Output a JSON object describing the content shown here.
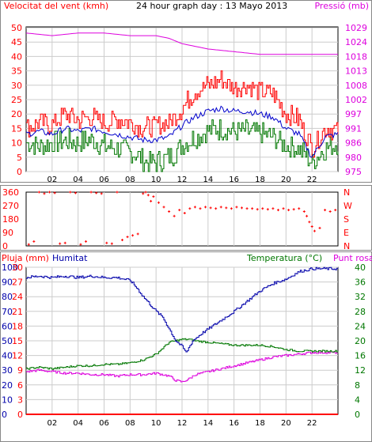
{
  "header": {
    "wind_title": "Velocitat del vent (kmh)",
    "graph_title": "24 hour graph day : 13 Mayo 2013",
    "pressure_title": "Pressió (mb)"
  },
  "colors": {
    "wind_gust": "#ff0000",
    "wind_avg": "#0000cc",
    "wind_low": "#007700",
    "pressure": "#dd00dd",
    "direction": "#ff0000",
    "rain": "#ff0000",
    "humidity": "#0000aa",
    "temperature": "#007700",
    "dewpoint": "#dd00dd",
    "grid": "#cccccc"
  },
  "x_ticks": [
    "02",
    "04",
    "06",
    "08",
    "10",
    "12",
    "14",
    "16",
    "18",
    "20",
    "22"
  ],
  "chart_data": [
    {
      "type": "line",
      "name": "wind-pressure",
      "x_range": [
        0,
        24
      ],
      "y_left": {
        "label": "Velocitat del vent (kmh)",
        "range": [
          0,
          50
        ],
        "ticks": [
          0,
          5,
          10,
          15,
          20,
          25,
          30,
          35,
          40,
          45,
          50
        ]
      },
      "y_right": {
        "label": "Pressió (mb)",
        "ticks": [
          975,
          980,
          986,
          991,
          997,
          1002,
          1008,
          1013,
          1018,
          1024,
          1029
        ]
      },
      "series": [
        {
          "name": "gust",
          "axis": "left",
          "x": [
            0,
            1,
            2,
            3,
            4,
            5,
            6,
            7,
            8,
            9,
            10,
            11,
            12,
            13,
            14,
            15,
            16,
            17,
            18,
            19,
            20,
            21,
            22,
            23,
            24
          ],
          "values": [
            15,
            17,
            16,
            20,
            18,
            19,
            17,
            18,
            17,
            15,
            16,
            17,
            22,
            28,
            30,
            32,
            29,
            30,
            28,
            27,
            20,
            18,
            8,
            15,
            14
          ]
        },
        {
          "name": "average",
          "axis": "left",
          "x": [
            0,
            1,
            2,
            3,
            4,
            5,
            6,
            7,
            8,
            9,
            10,
            11,
            12,
            13,
            14,
            15,
            16,
            17,
            18,
            19,
            20,
            21,
            22,
            23,
            24
          ],
          "values": [
            13,
            14,
            13,
            15,
            14,
            15,
            14,
            13,
            12,
            11,
            11,
            12,
            16,
            19,
            21,
            22,
            21,
            21,
            20,
            19,
            15,
            13,
            5,
            12,
            13
          ]
        },
        {
          "name": "low",
          "axis": "left",
          "x": [
            0,
            1,
            2,
            3,
            4,
            5,
            6,
            7,
            8,
            9,
            10,
            11,
            12,
            13,
            14,
            15,
            16,
            17,
            18,
            19,
            20,
            21,
            22,
            23,
            24
          ],
          "values": [
            10,
            9,
            10,
            11,
            10,
            11,
            9,
            8,
            7,
            4,
            3,
            5,
            9,
            12,
            14,
            15,
            14,
            14,
            13,
            12,
            9,
            8,
            3,
            8,
            10
          ]
        },
        {
          "name": "pressure",
          "axis": "right",
          "x": [
            0,
            2,
            4,
            6,
            8,
            10,
            11,
            12,
            13,
            14,
            16,
            18,
            20,
            22,
            24
          ],
          "values": [
            1027,
            1026,
            1027,
            1027,
            1026,
            1026,
            1025,
            1023,
            1022,
            1021,
            1020,
            1019,
            1019,
            1019,
            1019
          ]
        }
      ]
    },
    {
      "type": "scatter",
      "name": "wind-direction",
      "x_range": [
        0,
        24
      ],
      "y_left": {
        "range": [
          0,
          360
        ],
        "ticks": [
          0,
          90,
          180,
          270,
          360
        ]
      },
      "y_right": {
        "labels": [
          "N",
          "W",
          "S",
          "E",
          "N"
        ]
      },
      "series": [
        {
          "name": "direction",
          "x": [
            0.2,
            0.6,
            1.0,
            1.4,
            1.8,
            2.2,
            2.6,
            3.0,
            3.4,
            3.8,
            4.2,
            4.6,
            5.0,
            5.4,
            5.8,
            6.2,
            6.6,
            7.0,
            7.4,
            7.8,
            8.2,
            8.6,
            9.0,
            9.2,
            9.4,
            9.6,
            9.8,
            10.2,
            10.6,
            11.0,
            11.4,
            11.8,
            12.2,
            12.6,
            13.0,
            13.4,
            13.8,
            14.2,
            14.6,
            15.0,
            15.4,
            15.8,
            16.2,
            16.6,
            17.0,
            17.4,
            17.8,
            18.2,
            18.6,
            19.0,
            19.4,
            19.8,
            20.2,
            20.6,
            21.0,
            21.4,
            21.6,
            21.8,
            22.0,
            22.2,
            22.6,
            23.0,
            23.4,
            23.8
          ],
          "values": [
            10,
            30,
            360,
            350,
            360,
            355,
            15,
            20,
            360,
            355,
            10,
            30,
            360,
            355,
            350,
            20,
            15,
            360,
            40,
            60,
            70,
            80,
            350,
            360,
            340,
            300,
            330,
            290,
            260,
            230,
            200,
            240,
            220,
            250,
            260,
            250,
            260,
            255,
            250,
            260,
            255,
            250,
            260,
            255,
            250,
            250,
            245,
            250,
            245,
            250,
            240,
            250,
            240,
            245,
            250,
            230,
            200,
            160,
            130,
            100,
            120,
            240,
            230,
            240
          ]
        }
      ]
    },
    {
      "type": "line",
      "name": "rain-humidity-temperature",
      "x_range": [
        0,
        24
      ],
      "y_left_rain": {
        "label": "Pluja (mm)",
        "ticks": [
          0,
          3,
          6,
          9,
          12,
          15,
          18,
          21,
          24,
          27,
          30
        ]
      },
      "y_left_humidity": {
        "label": "Humitat",
        "ticks": [
          0,
          10,
          20,
          30,
          40,
          50,
          60,
          70,
          80,
          90,
          100
        ],
        "range": [
          0,
          100
        ]
      },
      "y_right": {
        "label": "Temperatura (°C)",
        "ticks": [
          0,
          4,
          8,
          12,
          16,
          20,
          24,
          28,
          32,
          36,
          40
        ],
        "range": [
          0,
          40
        ]
      },
      "dewpoint_label": "Punt rosada",
      "series": [
        {
          "name": "Humitat",
          "axis": "humidity",
          "x": [
            0,
            1,
            2,
            3,
            4,
            5,
            6,
            7,
            8,
            8.5,
            9,
            9.5,
            10,
            10.5,
            11,
            11.5,
            12,
            12.3,
            12.8,
            13.5,
            14,
            15,
            16,
            17,
            18,
            19,
            20,
            21,
            22,
            23,
            24
          ],
          "values": [
            93,
            94,
            93,
            94,
            93,
            94,
            93,
            93,
            91,
            86,
            80,
            75,
            70,
            66,
            58,
            50,
            46,
            42,
            50,
            55,
            58,
            64,
            70,
            77,
            84,
            89,
            92,
            97,
            99,
            99,
            99
          ]
        },
        {
          "name": "Temperatura",
          "axis": "temp",
          "x": [
            0,
            1,
            2,
            3,
            4,
            5,
            6,
            7,
            8,
            9,
            10,
            10.5,
            11,
            11.5,
            12,
            12.5,
            13,
            14,
            15,
            16,
            17,
            18,
            19,
            20,
            21,
            22,
            23,
            24
          ],
          "values": [
            12.4,
            12.8,
            12.4,
            12.8,
            13.2,
            13.2,
            13.6,
            13.6,
            14.0,
            14.8,
            16.4,
            18.0,
            19.6,
            20.0,
            20.4,
            20.4,
            20.0,
            19.6,
            19.2,
            18.8,
            18.8,
            18.8,
            18.4,
            17.6,
            17.2,
            17.2,
            17.2,
            17.2
          ]
        },
        {
          "name": "Punt rosada",
          "axis": "temp",
          "x": [
            0,
            1,
            2,
            3,
            4,
            5,
            6,
            7,
            8,
            9,
            10,
            11,
            11.5,
            12,
            12.5,
            13,
            14,
            15,
            16,
            17,
            18,
            19,
            20,
            21,
            22,
            23,
            24
          ],
          "values": [
            11.6,
            12.0,
            11.6,
            11.2,
            11.2,
            10.8,
            10.8,
            10.4,
            10.8,
            10.8,
            11.2,
            10.4,
            9.2,
            8.8,
            9.6,
            10.8,
            11.6,
            12.4,
            13.2,
            14.0,
            14.8,
            15.6,
            16.0,
            16.4,
            16.8,
            16.8,
            16.8
          ]
        },
        {
          "name": "Pluja",
          "axis": "rain",
          "x": [
            0,
            24
          ],
          "values": [
            0,
            0
          ]
        }
      ]
    }
  ]
}
